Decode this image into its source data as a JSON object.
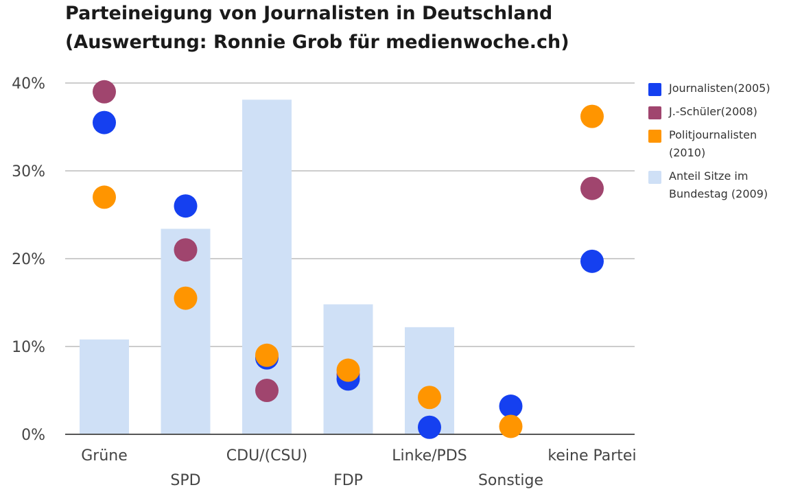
{
  "chart_data": {
    "type": "bar+scatter",
    "title_line1": "Parteineigung von Journalisten in Deutschland",
    "title_line2": "(Auswertung: Ronnie Grob für medienwoche.ch)",
    "categories": [
      "Grüne",
      "SPD",
      "CDU/(CSU)",
      "FDP",
      "Linke/PDS",
      "Sonstige",
      "keine Partei"
    ],
    "yticks": [
      "0%",
      "10%",
      "20%",
      "30%",
      "40%"
    ],
    "ylim": [
      0,
      40
    ],
    "bar_series": {
      "name_line1": "Anteil Sitze im",
      "name_line2": "Bundestag (2009)",
      "color": "#cfe0f6",
      "values": [
        10.8,
        23.4,
        38.1,
        14.8,
        12.2,
        null,
        null
      ]
    },
    "series": [
      {
        "name_line1": "Journalisten(2005)",
        "name_line2": "",
        "color": "#1540f0",
        "values": [
          35.5,
          26.0,
          8.7,
          6.3,
          0.8,
          3.2,
          19.7
        ]
      },
      {
        "name_line1": "J.-Schüler(2008)",
        "name_line2": "",
        "color": "#a0456e",
        "values": [
          39.0,
          21.0,
          5.0,
          6.8,
          null,
          null,
          28.0
        ]
      },
      {
        "name_line1": "Politjournalisten",
        "name_line2": "(2010)",
        "color": "#ff9500",
        "values": [
          27.0,
          15.5,
          9.0,
          7.3,
          4.2,
          0.9,
          36.2
        ]
      }
    ]
  }
}
